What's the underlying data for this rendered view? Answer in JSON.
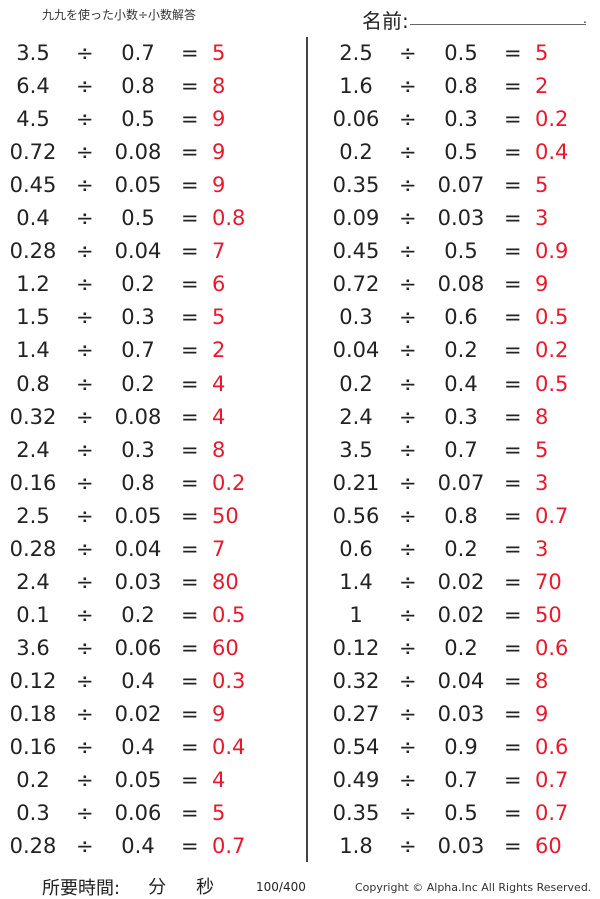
{
  "header": {
    "title": "九九を使った小数÷小数解答",
    "name_label": "名前:",
    "name_end": "."
  },
  "operator": "÷",
  "equals": "=",
  "left": [
    [
      "3.5",
      "0.7",
      "5"
    ],
    [
      "6.4",
      "0.8",
      "8"
    ],
    [
      "4.5",
      "0.5",
      "9"
    ],
    [
      "0.72",
      "0.08",
      "9"
    ],
    [
      "0.45",
      "0.05",
      "9"
    ],
    [
      "0.4",
      "0.5",
      "0.8"
    ],
    [
      "0.28",
      "0.04",
      "7"
    ],
    [
      "1.2",
      "0.2",
      "6"
    ],
    [
      "1.5",
      "0.3",
      "5"
    ],
    [
      "1.4",
      "0.7",
      "2"
    ],
    [
      "0.8",
      "0.2",
      "4"
    ],
    [
      "0.32",
      "0.08",
      "4"
    ],
    [
      "2.4",
      "0.3",
      "8"
    ],
    [
      "0.16",
      "0.8",
      "0.2"
    ],
    [
      "2.5",
      "0.05",
      "50"
    ],
    [
      "0.28",
      "0.04",
      "7"
    ],
    [
      "2.4",
      "0.03",
      "80"
    ],
    [
      "0.1",
      "0.2",
      "0.5"
    ],
    [
      "3.6",
      "0.06",
      "60"
    ],
    [
      "0.12",
      "0.4",
      "0.3"
    ],
    [
      "0.18",
      "0.02",
      "9"
    ],
    [
      "0.16",
      "0.4",
      "0.4"
    ],
    [
      "0.2",
      "0.05",
      "4"
    ],
    [
      "0.3",
      "0.06",
      "5"
    ],
    [
      "0.28",
      "0.4",
      "0.7"
    ]
  ],
  "right": [
    [
      "2.5",
      "0.5",
      "5"
    ],
    [
      "1.6",
      "0.8",
      "2"
    ],
    [
      "0.06",
      "0.3",
      "0.2"
    ],
    [
      "0.2",
      "0.5",
      "0.4"
    ],
    [
      "0.35",
      "0.07",
      "5"
    ],
    [
      "0.09",
      "0.03",
      "3"
    ],
    [
      "0.45",
      "0.5",
      "0.9"
    ],
    [
      "0.72",
      "0.08",
      "9"
    ],
    [
      "0.3",
      "0.6",
      "0.5"
    ],
    [
      "0.04",
      "0.2",
      "0.2"
    ],
    [
      "0.2",
      "0.4",
      "0.5"
    ],
    [
      "2.4",
      "0.3",
      "8"
    ],
    [
      "3.5",
      "0.7",
      "5"
    ],
    [
      "0.21",
      "0.07",
      "3"
    ],
    [
      "0.56",
      "0.8",
      "0.7"
    ],
    [
      "0.6",
      "0.2",
      "3"
    ],
    [
      "1.4",
      "0.02",
      "70"
    ],
    [
      "1",
      "0.02",
      "50"
    ],
    [
      "0.12",
      "0.2",
      "0.6"
    ],
    [
      "0.32",
      "0.04",
      "8"
    ],
    [
      "0.27",
      "0.03",
      "9"
    ],
    [
      "0.54",
      "0.9",
      "0.6"
    ],
    [
      "0.49",
      "0.7",
      "0.7"
    ],
    [
      "0.35",
      "0.5",
      "0.7"
    ],
    [
      "1.8",
      "0.03",
      "60"
    ]
  ],
  "footer": {
    "time_label": "所要時間:",
    "minutes": "分",
    "seconds": "秒",
    "score": "100/400",
    "copyright": "Copyright © Alpha.Inc All Rights Reserved."
  },
  "colors": {
    "answer": "#e8192c",
    "text": "#222222"
  }
}
